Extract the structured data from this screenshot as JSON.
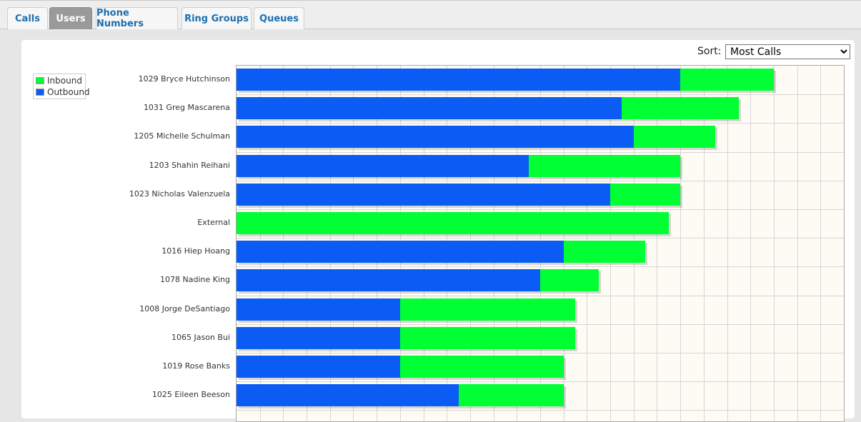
{
  "tabs": [
    {
      "label": "Calls",
      "active": false
    },
    {
      "label": "Users",
      "active": true
    },
    {
      "label": "Phone Numbers",
      "active": false
    },
    {
      "label": "Ring Groups",
      "active": false
    },
    {
      "label": "Queues",
      "active": false
    }
  ],
  "sort": {
    "label": "Sort:",
    "selected": "Most Calls"
  },
  "legend": {
    "inbound_label": "Inbound",
    "outbound_label": "Outbound",
    "inbound_color": "#00ff33",
    "outbound_color": "#0a5cf5"
  },
  "chart_data": {
    "type": "bar",
    "orientation": "horizontal",
    "stacked": true,
    "categories": [
      "1029 Bryce Hutchinson",
      "1031 Greg Mascarena",
      "1205 Michelle Schulman",
      "1203 Shahin Reihani",
      "1023 Nicholas Valenzuela",
      "External",
      "1016 Hiep Hoang",
      "1078 Nadine King",
      "1008 Jorge DeSantiago",
      "1065 Jason Bui",
      "1019 Rose Banks",
      "1025 Eileen Beeson"
    ],
    "series": [
      {
        "name": "Outbound",
        "values": [
          38,
          33,
          34,
          25,
          32,
          0,
          28,
          26,
          14,
          14,
          14,
          19
        ]
      },
      {
        "name": "Inbound",
        "values": [
          8,
          10,
          7,
          13,
          6,
          37,
          7,
          5,
          15,
          15,
          14,
          9
        ]
      }
    ],
    "xlim": [
      0,
      52
    ],
    "grid": true,
    "legend_position": "top-left"
  }
}
